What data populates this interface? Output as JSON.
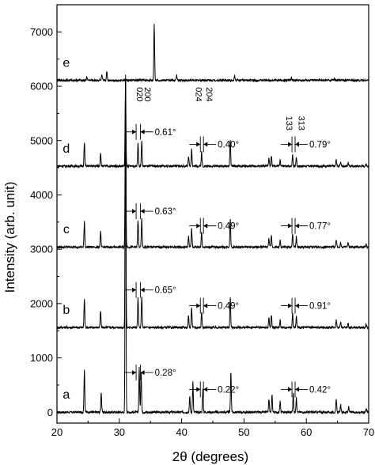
{
  "chart_data": {
    "type": "line",
    "title": "",
    "xlabel": "2θ (degrees)",
    "ylabel": "Intensity (arb. unit)",
    "xlim": [
      20,
      70
    ],
    "ylim": [
      -200,
      7500
    ],
    "xticks": [
      20,
      30,
      40,
      50,
      60,
      70
    ],
    "yticks": [
      0,
      1000,
      2000,
      3000,
      4000,
      5000,
      6000,
      7000
    ],
    "grid": false,
    "series": [
      {
        "name": "a",
        "baseline": 0,
        "peaks": [
          [
            24.4,
            780
          ],
          [
            27.1,
            380
          ],
          [
            31.0,
            6200
          ],
          [
            33.2,
            830
          ],
          [
            33.5,
            780
          ],
          [
            41.3,
            300
          ],
          [
            41.8,
            560
          ],
          [
            43.4,
            420
          ],
          [
            47.9,
            760
          ],
          [
            54.0,
            240
          ],
          [
            54.5,
            330
          ],
          [
            55.8,
            200
          ],
          [
            57.9,
            360
          ],
          [
            58.4,
            290
          ],
          [
            64.8,
            230
          ],
          [
            65.5,
            140
          ],
          [
            66.8,
            110
          ],
          [
            69.6,
            80
          ]
        ]
      },
      {
        "name": "b",
        "baseline": 1560,
        "peaks": [
          [
            24.4,
            520
          ],
          [
            27.0,
            300
          ],
          [
            31.0,
            4600
          ],
          [
            33.0,
            540
          ],
          [
            33.6,
            580
          ],
          [
            41.1,
            220
          ],
          [
            41.6,
            380
          ],
          [
            43.2,
            300
          ],
          [
            47.8,
            540
          ],
          [
            54.0,
            180
          ],
          [
            54.4,
            230
          ],
          [
            55.8,
            140
          ],
          [
            57.8,
            250
          ],
          [
            58.4,
            210
          ],
          [
            64.8,
            150
          ],
          [
            65.5,
            100
          ],
          [
            66.7,
            80
          ],
          [
            69.6,
            60
          ]
        ]
      },
      {
        "name": "c",
        "baseline": 3040,
        "peaks": [
          [
            24.4,
            480
          ],
          [
            27.0,
            280
          ],
          [
            31.0,
            3100
          ],
          [
            33.0,
            480
          ],
          [
            33.6,
            520
          ],
          [
            41.1,
            200
          ],
          [
            41.6,
            360
          ],
          [
            43.2,
            280
          ],
          [
            47.8,
            500
          ],
          [
            54.0,
            170
          ],
          [
            54.4,
            210
          ],
          [
            55.8,
            130
          ],
          [
            57.8,
            230
          ],
          [
            58.4,
            190
          ],
          [
            64.8,
            140
          ],
          [
            65.5,
            90
          ],
          [
            66.7,
            70
          ],
          [
            69.6,
            50
          ]
        ]
      },
      {
        "name": "d",
        "baseline": 4530,
        "peaks": [
          [
            24.4,
            430
          ],
          [
            27.0,
            250
          ],
          [
            31.0,
            1600
          ],
          [
            33.0,
            430
          ],
          [
            33.6,
            470
          ],
          [
            41.1,
            180
          ],
          [
            41.6,
            330
          ],
          [
            43.2,
            260
          ],
          [
            47.8,
            460
          ],
          [
            54.0,
            150
          ],
          [
            54.4,
            190
          ],
          [
            55.8,
            120
          ],
          [
            57.8,
            210
          ],
          [
            58.4,
            170
          ],
          [
            64.8,
            120
          ],
          [
            65.5,
            80
          ],
          [
            66.7,
            60
          ],
          [
            69.6,
            40
          ]
        ]
      },
      {
        "name": "e",
        "baseline": 6110,
        "peaks": [
          [
            24.8,
            60
          ],
          [
            27.2,
            90
          ],
          [
            28.0,
            160
          ],
          [
            35.6,
            1050
          ],
          [
            39.2,
            90
          ],
          [
            48.5,
            100
          ],
          [
            57.6,
            40
          ],
          [
            64.5,
            30
          ]
        ]
      }
    ],
    "hkl_labels": [
      {
        "text": "020",
        "x": 32.8,
        "y": 5850
      },
      {
        "text": "200",
        "x": 34.1,
        "y": 5850
      },
      {
        "text": "024",
        "x": 42.3,
        "y": 5850
      },
      {
        "text": "204",
        "x": 44.0,
        "y": 5850
      },
      {
        "text": "133",
        "x": 56.8,
        "y": 5320
      },
      {
        "text": "313",
        "x": 58.8,
        "y": 5320
      }
    ],
    "splittings": [
      {
        "series": "d",
        "text": "0.61°",
        "x1": 32.7,
        "x2": 33.4,
        "y": 5160
      },
      {
        "series": "d",
        "text": "0.40°",
        "x1": 43.0,
        "x2": 43.5,
        "y": 4930
      },
      {
        "series": "d",
        "text": "0.79°",
        "x1": 57.7,
        "x2": 58.2,
        "y": 4930
      },
      {
        "series": "c",
        "text": "0.63°",
        "x1": 32.7,
        "x2": 33.4,
        "y": 3700
      },
      {
        "series": "c",
        "text": "0.49°",
        "x1": 43.0,
        "x2": 43.5,
        "y": 3430
      },
      {
        "series": "c",
        "text": "0.77°",
        "x1": 57.7,
        "x2": 58.2,
        "y": 3430
      },
      {
        "series": "b",
        "text": "0.65°",
        "x1": 32.7,
        "x2": 33.4,
        "y": 2250
      },
      {
        "series": "b",
        "text": "0.49°",
        "x1": 43.0,
        "x2": 43.5,
        "y": 1960
      },
      {
        "series": "b",
        "text": "0.91°",
        "x1": 57.7,
        "x2": 58.2,
        "y": 1960
      },
      {
        "series": "a",
        "text": "0.28°",
        "x1": 32.7,
        "x2": 33.4,
        "y": 730
      },
      {
        "series": "a",
        "text": "0.22°",
        "x1": 43.0,
        "x2": 43.5,
        "y": 420
      },
      {
        "series": "a",
        "text": "0.42°",
        "x1": 57.7,
        "x2": 58.2,
        "y": 420
      }
    ]
  }
}
